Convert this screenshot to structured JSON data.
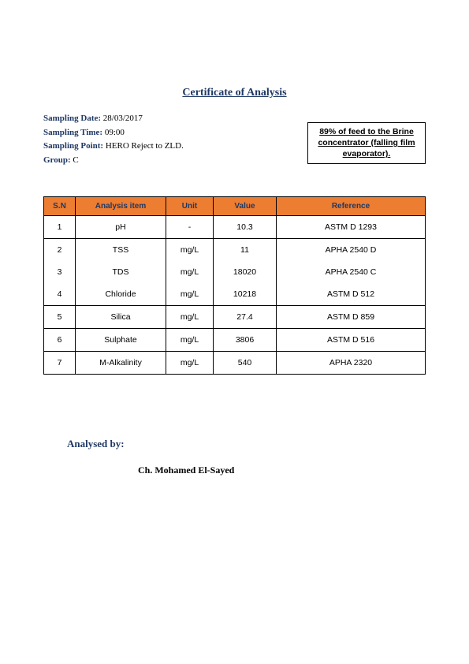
{
  "title": "Certificate of Analysis",
  "meta": {
    "sampling_date_label": "Sampling Date:",
    "sampling_date": "28/03/2017",
    "sampling_time_label": "Sampling Time:",
    "sampling_time": "09:00",
    "sampling_point_label": "Sampling Point:",
    "sampling_point": "HERO Reject to ZLD.",
    "group_label": "Group:",
    "group": "C"
  },
  "note_box": "89% of feed to the Brine concentrator (falling film evaporator).",
  "table": {
    "headers": {
      "sn": "S.N",
      "item": "Analysis item",
      "unit": "Unit",
      "value": "Value",
      "reference": "Reference"
    },
    "rows": [
      {
        "sn": "1",
        "item": "pH",
        "unit": "-",
        "value": "10.3",
        "reference": "ASTM  D   1293",
        "sep": true
      },
      {
        "sn": "2",
        "item": "TSS",
        "unit": "mg/L",
        "value": "11",
        "reference": "APHA  2540  D",
        "sep": false
      },
      {
        "sn": "3",
        "item": "TDS",
        "unit": "mg/L",
        "value": "18020",
        "reference": "APHA  2540  C",
        "sep": false
      },
      {
        "sn": "4",
        "item": "Chloride",
        "unit": "mg/L",
        "value": "10218",
        "reference": "ASTM  D    512",
        "sep": true
      },
      {
        "sn": "5",
        "item": "Silica",
        "unit": "mg/L",
        "value": "27.4",
        "reference": "ASTM  D    859",
        "sep": true
      },
      {
        "sn": "6",
        "item": "Sulphate",
        "unit": "mg/L",
        "value": "3806",
        "reference": "ASTM  D    516",
        "sep": true
      },
      {
        "sn": "7",
        "item": "M-Alkalinity",
        "unit": "mg/L",
        "value": "540",
        "reference": "APHA  2320",
        "sep": true
      }
    ]
  },
  "analysed_by_label": "Analysed by:",
  "analyst_name": "Ch. Mohamed El-Sayed",
  "colors": {
    "header_bg": "#ed7d31",
    "brand_text": "#1f3864",
    "border": "#000000",
    "page_bg": "#ffffff"
  }
}
